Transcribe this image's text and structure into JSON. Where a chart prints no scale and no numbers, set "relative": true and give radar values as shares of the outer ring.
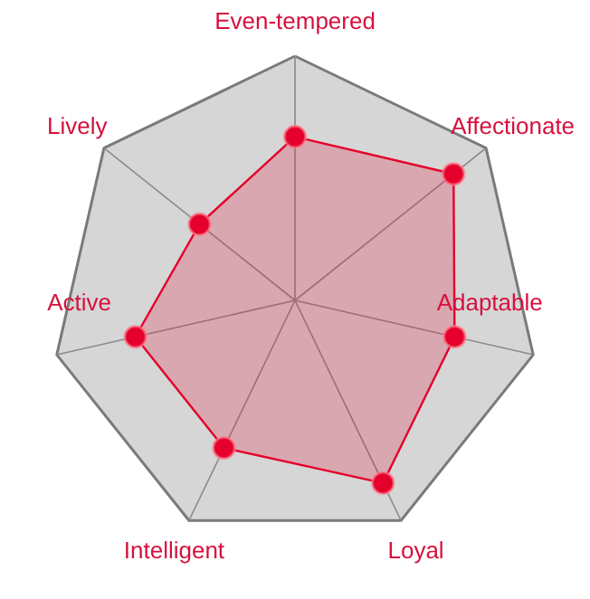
{
  "chart_data": {
    "type": "radar",
    "relative": true,
    "grid": true,
    "marker": "circle",
    "categories": [
      "Even-tempered",
      "Affectionate",
      "Adaptable",
      "Loyal",
      "Intelligent",
      "Active",
      "Lively"
    ],
    "series": [
      {
        "color": "#e4002b",
        "values": [
          0.67,
          0.83,
          0.67,
          0.83,
          0.67,
          0.67,
          0.5
        ]
      }
    ]
  }
}
